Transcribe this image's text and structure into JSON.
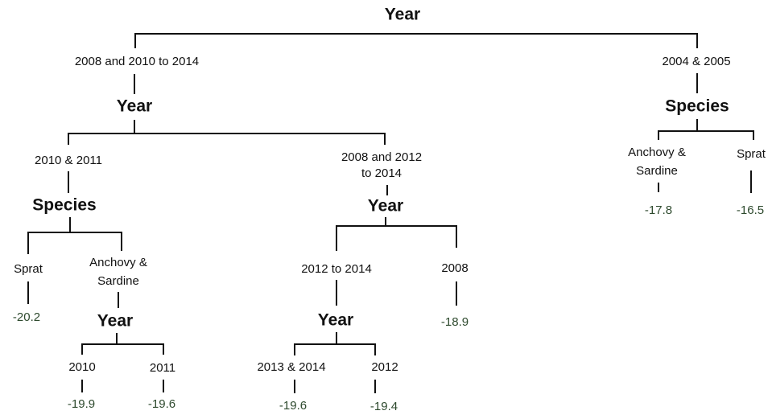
{
  "splits": [
    "Year",
    "Year",
    "Species",
    "Species",
    "Year",
    "Year",
    "Year"
  ],
  "branches": [
    "2008 and 2010 to 2014",
    "2004 & 2005",
    "2010 & 2011",
    [
      "2008 and 2012",
      "to 2014"
    ],
    [
      "Anchovy &",
      "Sardine"
    ],
    "Sprat",
    "Sprat",
    [
      "Anchovy &",
      "Sardine"
    ],
    "2012 to 2014",
    "2008",
    "2010",
    "2011",
    "2013 & 2014",
    "2012"
  ],
  "leaves": [
    -17.8,
    -16.5,
    -20.2,
    -18.9,
    -19.9,
    -19.6,
    -19.6,
    -19.4
  ]
}
